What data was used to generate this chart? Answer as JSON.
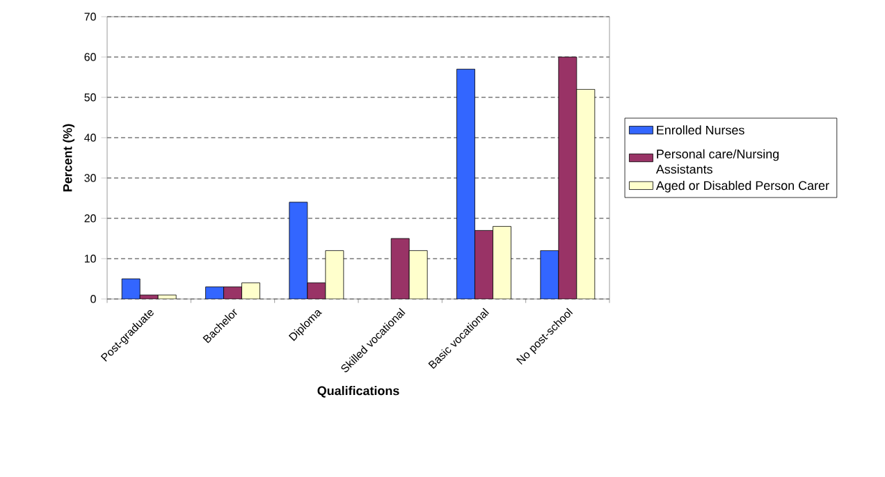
{
  "chart_data": {
    "type": "bar",
    "xlabel": "Qualifications",
    "ylabel": "Percent (%)",
    "categories": [
      "Post-graduate",
      "Bachelor",
      "Diploma",
      "Skilled vocational",
      "Basic vocational",
      "No post-school"
    ],
    "series": [
      {
        "name": "Enrolled Nurses",
        "color": "#3366ff",
        "values": [
          5,
          3,
          24,
          null,
          57,
          12
        ]
      },
      {
        "name": "Personal care/Nursing Assistants",
        "color": "#993366",
        "values": [
          1,
          3,
          4,
          15,
          17,
          60
        ]
      },
      {
        "name": "Aged or Disabled Person Carer",
        "color": "#ffffcc",
        "values": [
          1,
          4,
          12,
          12,
          18,
          52
        ]
      }
    ],
    "ylim": [
      0,
      70
    ],
    "yticks": [
      0,
      10,
      20,
      30,
      40,
      50,
      60,
      70
    ],
    "grid": "y",
    "legend": "right"
  }
}
